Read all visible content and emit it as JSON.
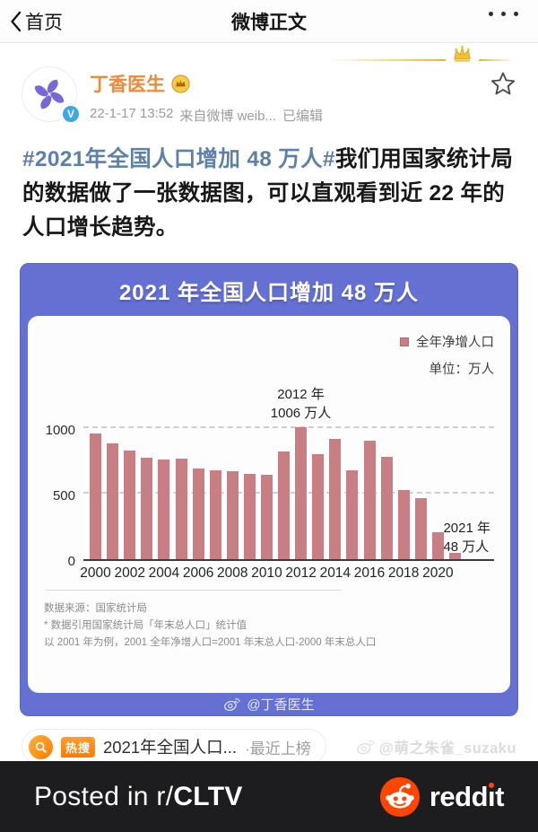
{
  "nav": {
    "back_label": "首页",
    "title": "微博正文"
  },
  "post": {
    "author": "丁香医生",
    "timestamp": "22-1-17 13:52",
    "source": "来自微博 weib...",
    "edited_label": "已编辑",
    "hashtag": "#2021年全国人口增加 48 万人#",
    "body": "我们用国家统计局的数据做了一张数据图，可以直观看到近 22 年的人口增长趋势。"
  },
  "chart_data": {
    "type": "bar",
    "title": "2021 年全国人口增加 48 万人",
    "legend_label": "全年净增人口",
    "unit_label": "单位：万人",
    "legend_position": "top-right",
    "grid": "horizontal dashed",
    "xlabel": "",
    "ylabel": "",
    "ylim": [
      0,
      1100
    ],
    "yticks": [
      0,
      500,
      1000
    ],
    "x_tick_step": 2,
    "bar_color": "#c87e82",
    "categories": [
      2000,
      2001,
      2002,
      2003,
      2004,
      2005,
      2006,
      2007,
      2008,
      2009,
      2010,
      2011,
      2012,
      2013,
      2014,
      2015,
      2016,
      2017,
      2018,
      2019,
      2020,
      2021
    ],
    "values": [
      957,
      884,
      826,
      774,
      761,
      768,
      692,
      681,
      673,
      648,
      641,
      825,
      1006,
      804,
      920,
      680,
      906,
      779,
      530,
      467,
      204,
      48
    ],
    "annotations": [
      {
        "year": 2012,
        "lines": [
          "2012 年",
          "1006 万人"
        ]
      },
      {
        "year": 2021,
        "lines": [
          "2021 年",
          "48 万人"
        ]
      }
    ],
    "source_notes": [
      "数据来源：国家统计局",
      "* 数据引用国家统计局「年末总人口」统计值",
      "以 2001 年为例，2001 全年净增人口=2001 年末总人口-2000 年末总人口"
    ],
    "credit": "@丁香医生"
  },
  "hot_search": {
    "badge": "热搜",
    "topic": "2021年全国人口...",
    "status": "·最近上榜"
  },
  "watermark": "@萌之朱雀_suzaku",
  "footer": {
    "posted_prefix": "Posted in r/",
    "subreddit": "CLTV",
    "brand": "reddit"
  },
  "colors": {
    "chart_background": "#6471d3",
    "bar": "#c87e82",
    "username_orange": "#ee8a3a",
    "hashtag_blue": "#5c80a8",
    "reddit_orange": "#ff4500",
    "hot_orange": "#ff7a00",
    "gold": "#e9b72c"
  },
  "icons": {
    "back": "chevron-left-icon",
    "more": "more-dots-icon",
    "favorite": "star-outline-icon",
    "verified": "weibo-v-badge-icon",
    "vip": "gold-vip-badge-icon",
    "decor": "crown-icon",
    "hot": "hot-search-magnifier-icon",
    "weibo": "weibo-eye-icon",
    "reddit": "reddit-snoo-icon"
  }
}
